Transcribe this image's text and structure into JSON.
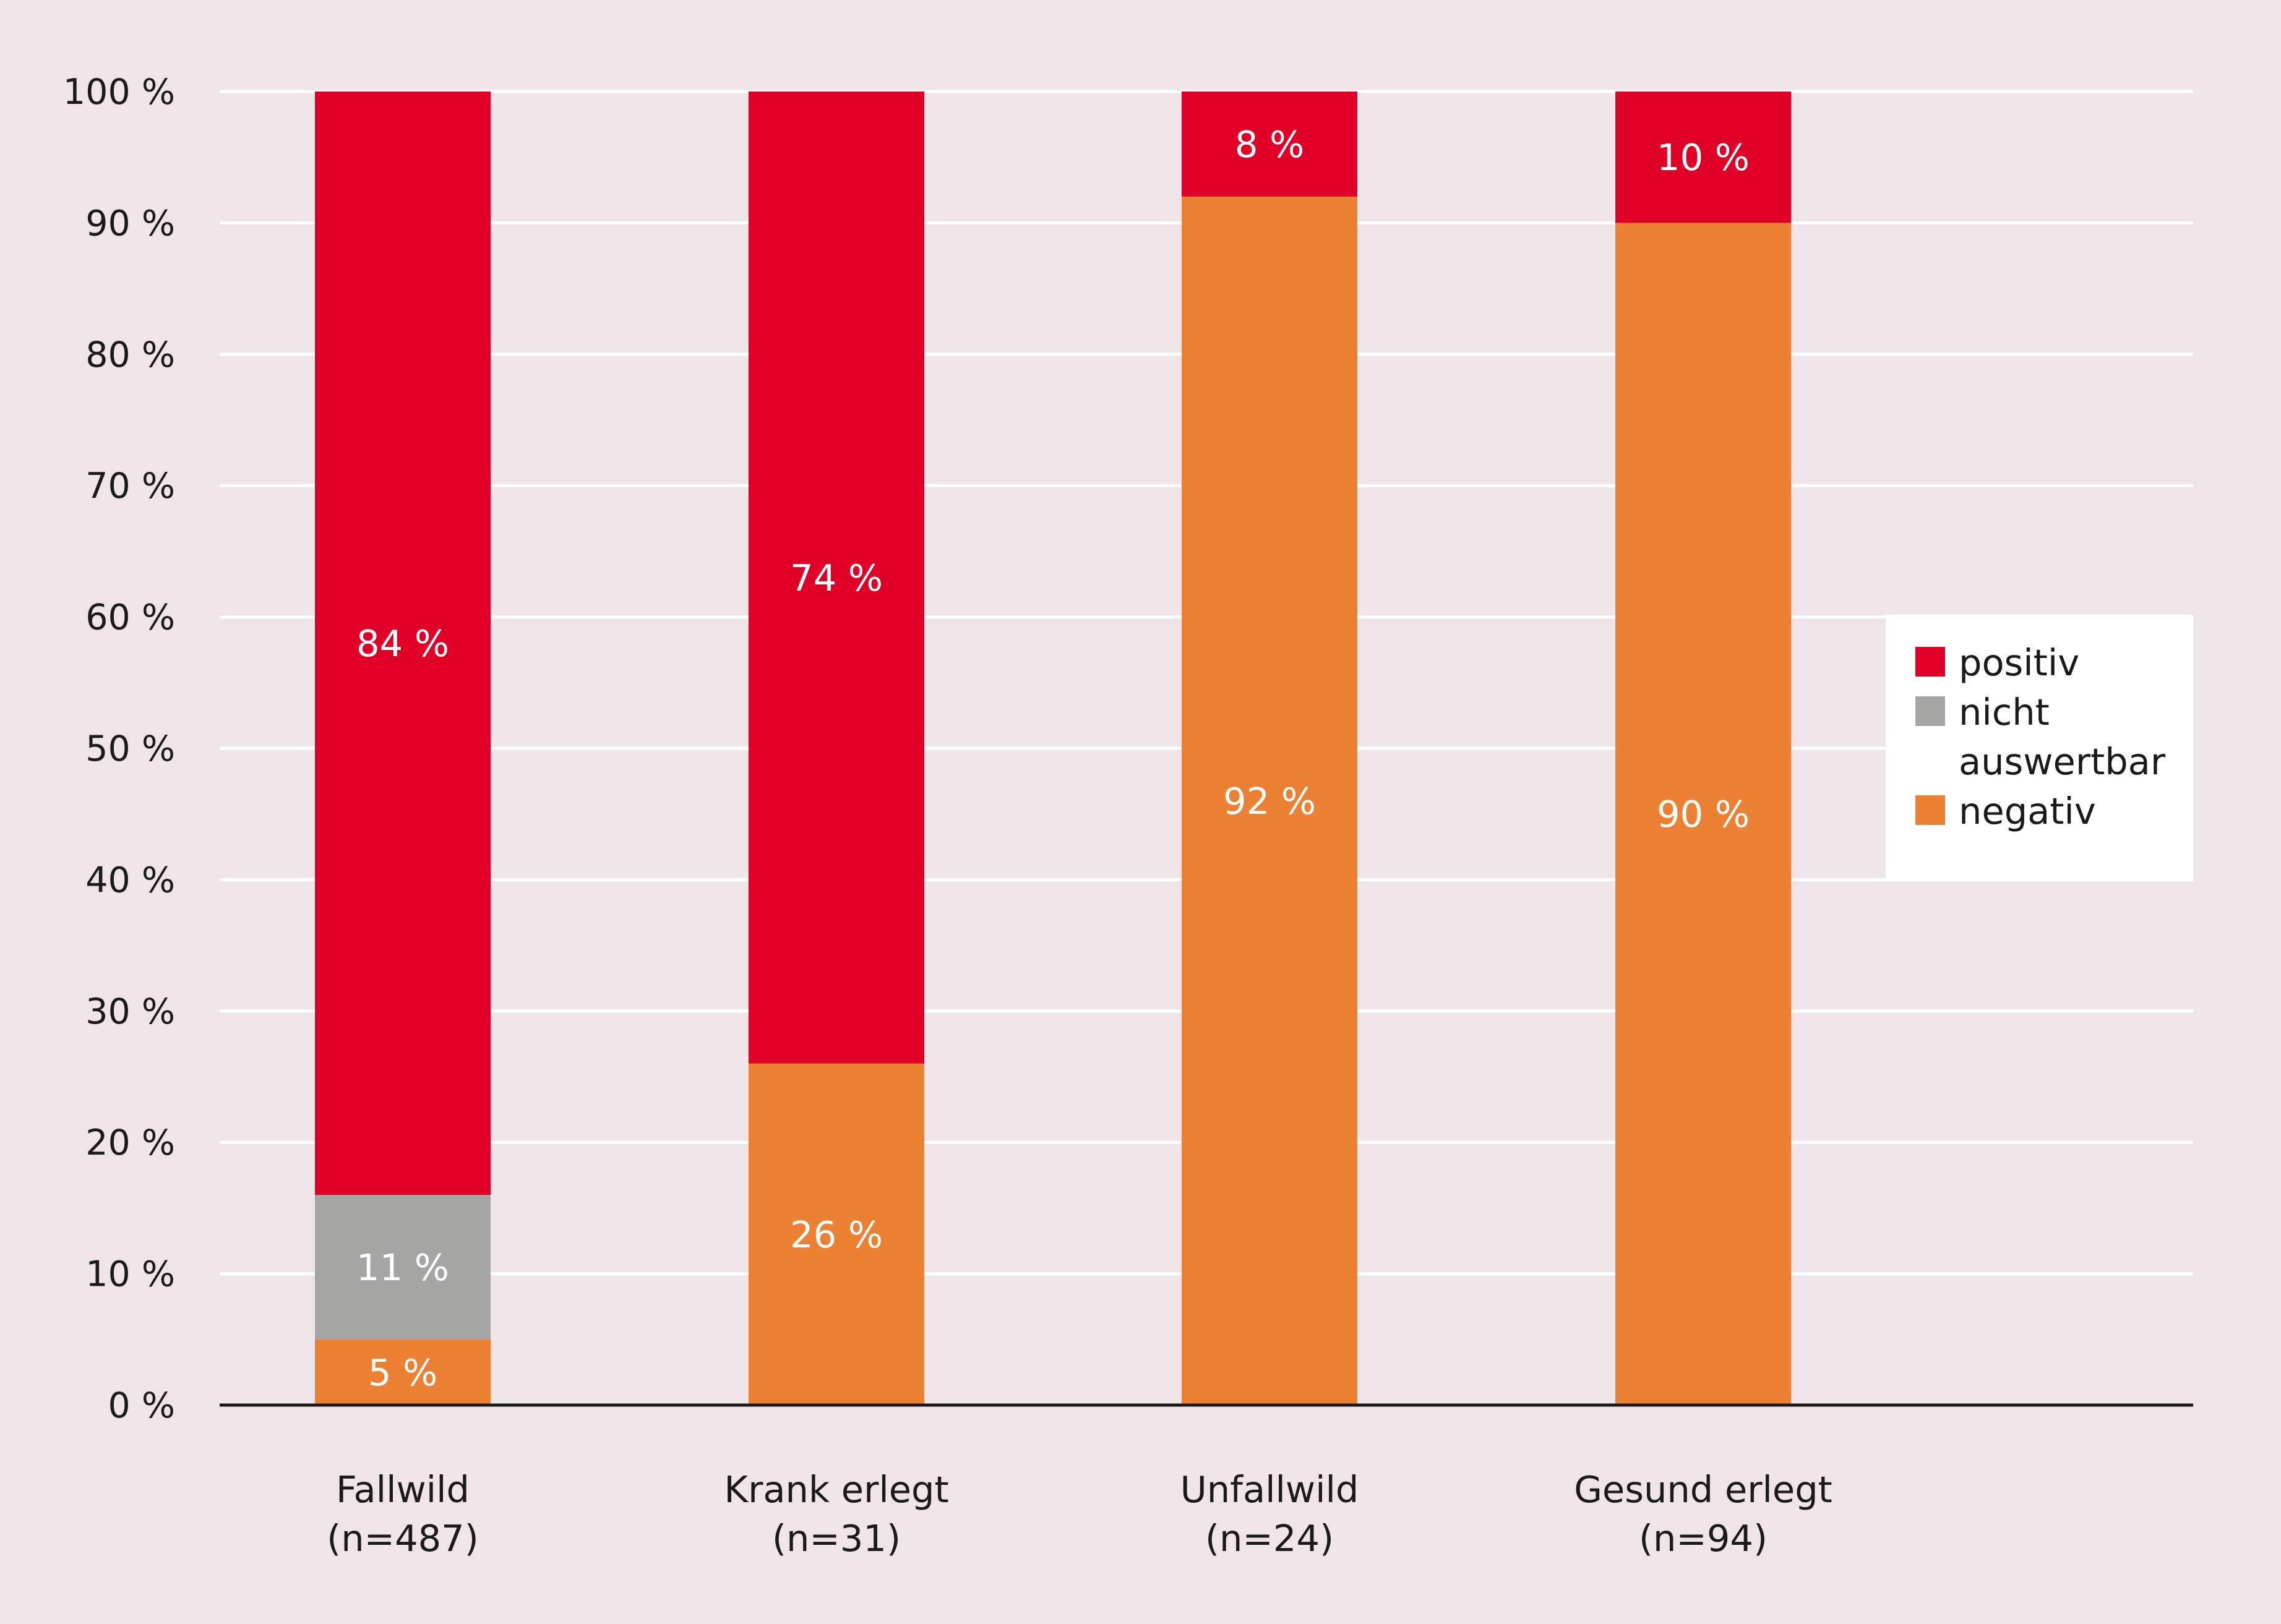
{
  "chart_data": {
    "type": "bar",
    "stacked": true,
    "categories": [
      {
        "name": "Fallwild",
        "n": "(n=487)"
      },
      {
        "name": "Krank erlegt",
        "n": "(n=31)"
      },
      {
        "name": "Unfallwild",
        "n": "(n=24)"
      },
      {
        "name": "Gesund erlegt",
        "n": "(n=94)"
      }
    ],
    "series": [
      {
        "name": "negativ",
        "color": "#ec8133",
        "values": [
          5,
          26,
          92,
          90
        ],
        "labels": [
          "5 %",
          "26 %",
          "92 %",
          "90 %"
        ]
      },
      {
        "name": "nicht auswertbar",
        "color": "#a5a5a4",
        "values": [
          11,
          0,
          0,
          0
        ],
        "labels": [
          "11 %",
          "",
          "",
          ""
        ]
      },
      {
        "name": "positiv",
        "color": "#e00027",
        "values": [
          84,
          74,
          8,
          10
        ],
        "labels": [
          "84 %",
          "74 %",
          "8 %",
          "10 %"
        ]
      }
    ],
    "y_ticks": [
      "0 %",
      "10 %",
      "20 %",
      "30 %",
      "40 %",
      "50 %",
      "60 %",
      "70 %",
      "80 %",
      "90 %",
      "100 %"
    ],
    "ylim": [
      0,
      100
    ],
    "grid": true,
    "legend": {
      "position": "right",
      "entries": [
        {
          "lines": [
            "positiv"
          ],
          "color": "#e00027"
        },
        {
          "lines": [
            "nicht",
            "auswertbar"
          ],
          "color": "#a5a5a4"
        },
        {
          "lines": [
            "negativ"
          ],
          "color": "#ec8133"
        }
      ]
    }
  }
}
